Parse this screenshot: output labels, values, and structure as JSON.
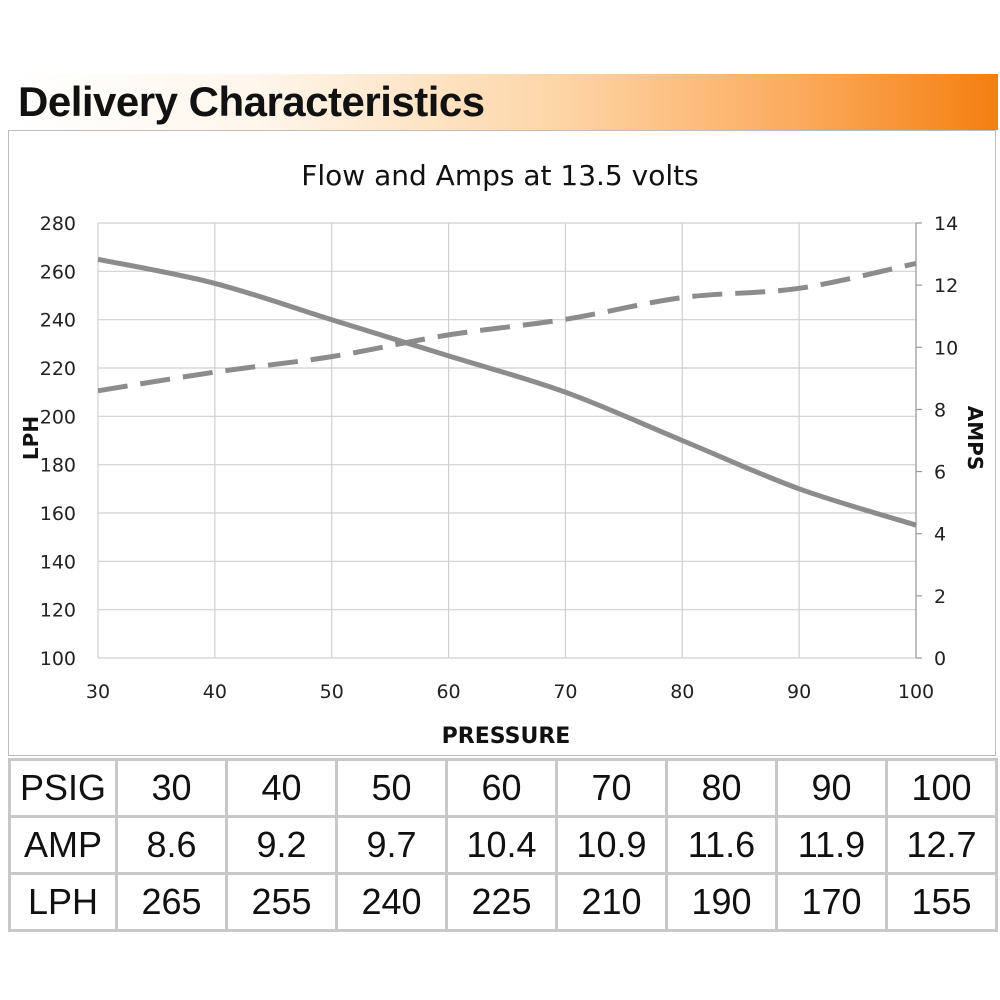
{
  "header": {
    "title": "Delivery Characteristics"
  },
  "chart_data": {
    "type": "line",
    "title": "Flow and Amps at 13.5 volts",
    "xlabel": "PRESSURE",
    "ylabel": "LPH",
    "y2label": "AMPS",
    "x": [
      30,
      40,
      50,
      60,
      70,
      80,
      90,
      100
    ],
    "xlim": [
      30,
      100
    ],
    "xticks": [
      "30",
      "40",
      "50",
      "60",
      "70",
      "80",
      "90",
      "100"
    ],
    "ylim": [
      100,
      280
    ],
    "yticks": [
      "100",
      "120",
      "140",
      "160",
      "180",
      "200",
      "220",
      "240",
      "260",
      "280"
    ],
    "y2lim": [
      0,
      14
    ],
    "y2ticks": [
      "0",
      "2",
      "4",
      "6",
      "8",
      "10",
      "12",
      "14"
    ],
    "grid": true,
    "series": [
      {
        "name": "LPH",
        "axis": "left",
        "style": "solid",
        "color": "#8c8c8c",
        "values": [
          265,
          255,
          240,
          225,
          210,
          190,
          170,
          155
        ]
      },
      {
        "name": "AMP",
        "axis": "right",
        "style": "dashed",
        "color": "#8c8c8c",
        "values": [
          8.6,
          9.2,
          9.7,
          10.4,
          10.9,
          11.6,
          11.9,
          12.7
        ]
      }
    ]
  },
  "table": {
    "rows": [
      {
        "label": "PSIG",
        "cells": [
          "30",
          "40",
          "50",
          "60",
          "70",
          "80",
          "90",
          "100"
        ]
      },
      {
        "label": "AMP",
        "cells": [
          "8.6",
          "9.2",
          "9.7",
          "10.4",
          "10.9",
          "11.6",
          "11.9",
          "12.7"
        ]
      },
      {
        "label": "LPH",
        "cells": [
          "265",
          "255",
          "240",
          "225",
          "210",
          "190",
          "170",
          "155"
        ]
      }
    ]
  }
}
